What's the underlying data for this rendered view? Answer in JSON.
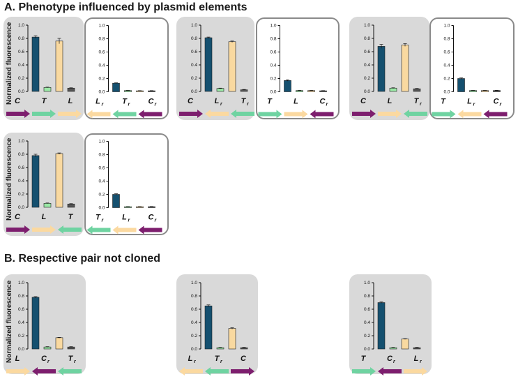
{
  "sections": {
    "a_title": "A. Phenotype influenced by plasmid elements",
    "b_title": "B. Respective pair not cloned"
  },
  "ylabel": "Normalized fluorescence",
  "colors": {
    "C": "#15506f",
    "T": "#9be8a6",
    "L": "#f9d9a0",
    "R": "#555555",
    "arrow_C": "#7d1e6e",
    "arrow_T": "#6fd3a1",
    "arrow_L": "#fbd9a0",
    "panel_filled": "#d9d9d9",
    "panel_border": "#8a8a8a"
  },
  "chart_data": [
    {
      "type": "bar",
      "panel": "A1",
      "style": "filled",
      "ylim": [
        0,
        1.0
      ],
      "ticks": [
        "0.0",
        "0.2",
        "0.4",
        "0.6",
        "0.8",
        "1.0"
      ],
      "bars": [
        {
          "color": "C",
          "value": 0.82,
          "err": 0.02
        },
        {
          "color": "T",
          "value": 0.06,
          "err": 0.005
        },
        {
          "color": "L",
          "value": 0.76,
          "err": 0.04
        },
        {
          "color": "R",
          "value": 0.05,
          "err": 0.005
        }
      ],
      "labels": [
        {
          "base": "C",
          "sub": ""
        },
        {
          "base": "T",
          "sub": ""
        },
        {
          "base": "L",
          "sub": ""
        }
      ],
      "arrows": [
        {
          "color": "C",
          "dir": "right"
        },
        {
          "color": "T",
          "dir": "right"
        },
        {
          "color": "L",
          "dir": "right"
        }
      ]
    },
    {
      "type": "bar",
      "panel": "A2",
      "style": "outlined",
      "ylim": [
        0,
        1.0
      ],
      "ticks": [
        "0.0",
        "0.2",
        "0.4",
        "0.6",
        "0.8",
        "1.0"
      ],
      "bars": [
        {
          "color": "C",
          "value": 0.13,
          "err": 0.005
        },
        {
          "color": "T",
          "value": 0.02,
          "err": 0.003
        },
        {
          "color": "L",
          "value": 0.015,
          "err": 0.003
        },
        {
          "color": "R",
          "value": 0.015,
          "err": 0.003
        }
      ],
      "labels": [
        {
          "base": "L",
          "sub": "r"
        },
        {
          "base": "T",
          "sub": "r"
        },
        {
          "base": "C",
          "sub": "r"
        }
      ],
      "arrows": [
        {
          "color": "L",
          "dir": "left"
        },
        {
          "color": "T",
          "dir": "left"
        },
        {
          "color": "C",
          "dir": "left"
        }
      ]
    },
    {
      "type": "bar",
      "panel": "A3",
      "style": "filled",
      "ylim": [
        0,
        1.0
      ],
      "ticks": [
        "0.0",
        "0.2",
        "0.4",
        "0.6",
        "0.8",
        "1.0"
      ],
      "bars": [
        {
          "color": "C",
          "value": 0.81,
          "err": 0.01
        },
        {
          "color": "T",
          "value": 0.045,
          "err": 0.005
        },
        {
          "color": "L",
          "value": 0.75,
          "err": 0.01
        },
        {
          "color": "R",
          "value": 0.025,
          "err": 0.005
        }
      ],
      "labels": [
        {
          "base": "C",
          "sub": ""
        },
        {
          "base": "L",
          "sub": "r"
        },
        {
          "base": "T",
          "sub": "r"
        }
      ],
      "arrows": [
        {
          "color": "C",
          "dir": "right"
        },
        {
          "color": "L",
          "dir": "left"
        },
        {
          "color": "T",
          "dir": "left"
        }
      ]
    },
    {
      "type": "bar",
      "panel": "A4",
      "style": "outlined",
      "ylim": [
        0,
        1.0
      ],
      "ticks": [
        "0.0",
        "0.2",
        "0.4",
        "0.6",
        "0.8",
        "1.0"
      ],
      "bars": [
        {
          "color": "C",
          "value": 0.17,
          "err": 0.01
        },
        {
          "color": "T",
          "value": 0.02,
          "err": 0.003
        },
        {
          "color": "L",
          "value": 0.02,
          "err": 0.003
        },
        {
          "color": "R",
          "value": 0.015,
          "err": 0.003
        }
      ],
      "labels": [
        {
          "base": "T",
          "sub": ""
        },
        {
          "base": "L",
          "sub": ""
        },
        {
          "base": "C",
          "sub": "r"
        }
      ],
      "arrows": [
        {
          "color": "T",
          "dir": "right"
        },
        {
          "color": "L",
          "dir": "right"
        },
        {
          "color": "C",
          "dir": "left"
        }
      ]
    },
    {
      "type": "bar",
      "panel": "A5",
      "style": "filled",
      "ylim": [
        0,
        1.0
      ],
      "ticks": [
        "0.0",
        "0.2",
        "0.4",
        "0.6",
        "0.8",
        "1.0"
      ],
      "bars": [
        {
          "color": "C",
          "value": 0.68,
          "err": 0.03
        },
        {
          "color": "T",
          "value": 0.05,
          "err": 0.005
        },
        {
          "color": "L",
          "value": 0.7,
          "err": 0.02
        },
        {
          "color": "R",
          "value": 0.04,
          "err": 0.005
        }
      ],
      "labels": [
        {
          "base": "C",
          "sub": ""
        },
        {
          "base": "L",
          "sub": ""
        },
        {
          "base": "T",
          "sub": "r"
        }
      ],
      "arrows": [
        {
          "color": "C",
          "dir": "right"
        },
        {
          "color": "L",
          "dir": "right"
        },
        {
          "color": "T",
          "dir": "left"
        }
      ]
    },
    {
      "type": "bar",
      "panel": "A6",
      "style": "outlined",
      "ylim": [
        0,
        1.0
      ],
      "ticks": [
        "0.0",
        "0.2",
        "0.4",
        "0.6",
        "0.8",
        "1.0"
      ],
      "bars": [
        {
          "color": "C",
          "value": 0.2,
          "err": 0.01
        },
        {
          "color": "T",
          "value": 0.02,
          "err": 0.003
        },
        {
          "color": "L",
          "value": 0.02,
          "err": 0.003
        },
        {
          "color": "R",
          "value": 0.02,
          "err": 0.003
        }
      ],
      "labels": [
        {
          "base": "T",
          "sub": ""
        },
        {
          "base": "L",
          "sub": "r"
        },
        {
          "base": "C",
          "sub": "r"
        }
      ],
      "arrows": [
        {
          "color": "T",
          "dir": "right"
        },
        {
          "color": "L",
          "dir": "left"
        },
        {
          "color": "C",
          "dir": "left"
        }
      ]
    },
    {
      "type": "bar",
      "panel": "A7",
      "style": "filled",
      "ylim": [
        0,
        1.0
      ],
      "ticks": [
        "0.0",
        "0.2",
        "0.4",
        "0.6",
        "0.8",
        "1.0"
      ],
      "bars": [
        {
          "color": "C",
          "value": 0.78,
          "err": 0.02
        },
        {
          "color": "T",
          "value": 0.06,
          "err": 0.005
        },
        {
          "color": "L",
          "value": 0.81,
          "err": 0.01
        },
        {
          "color": "R",
          "value": 0.05,
          "err": 0.005
        }
      ],
      "labels": [
        {
          "base": "C",
          "sub": ""
        },
        {
          "base": "L",
          "sub": ""
        },
        {
          "base": "T",
          "sub": ""
        }
      ],
      "arrows": [
        {
          "color": "C",
          "dir": "right"
        },
        {
          "color": "L",
          "dir": "right"
        },
        {
          "color": "T",
          "dir": "left"
        }
      ]
    },
    {
      "type": "bar",
      "panel": "A8",
      "style": "outlined",
      "ylim": [
        0,
        1.0
      ],
      "ticks": [
        "0.0",
        "0.2",
        "0.4",
        "0.6",
        "0.8",
        "1.0"
      ],
      "bars": [
        {
          "color": "C",
          "value": 0.2,
          "err": 0.01
        },
        {
          "color": "T",
          "value": 0.015,
          "err": 0.003
        },
        {
          "color": "L",
          "value": 0.015,
          "err": 0.003
        },
        {
          "color": "R",
          "value": 0.015,
          "err": 0.003
        }
      ],
      "labels": [
        {
          "base": "T",
          "sub": "r"
        },
        {
          "base": "L",
          "sub": "r"
        },
        {
          "base": "C",
          "sub": "r"
        }
      ],
      "arrows": [
        {
          "color": "T",
          "dir": "left"
        },
        {
          "color": "L",
          "dir": "left"
        },
        {
          "color": "C",
          "dir": "left"
        }
      ]
    },
    {
      "type": "bar",
      "panel": "B1",
      "style": "filled",
      "ylim": [
        0,
        1.0
      ],
      "ticks": [
        "0.0",
        "0.2",
        "0.4",
        "0.6",
        "0.8",
        "1.0"
      ],
      "bars": [
        {
          "color": "C",
          "value": 0.78,
          "err": 0.01
        },
        {
          "color": "T",
          "value": 0.03,
          "err": 0.005
        },
        {
          "color": "L",
          "value": 0.17,
          "err": 0.005
        },
        {
          "color": "R",
          "value": 0.03,
          "err": 0.005
        }
      ],
      "labels": [
        {
          "base": "L",
          "sub": ""
        },
        {
          "base": "C",
          "sub": "r"
        },
        {
          "base": "T",
          "sub": "r"
        }
      ],
      "arrows": [
        {
          "color": "L",
          "dir": "right"
        },
        {
          "color": "C",
          "dir": "left"
        },
        {
          "color": "T",
          "dir": "left"
        }
      ]
    },
    {
      "type": "bar",
      "panel": "B2",
      "style": "filled",
      "ylim": [
        0,
        1.0
      ],
      "ticks": [
        "0.0",
        "0.2",
        "0.4",
        "0.6",
        "0.8",
        "1.0"
      ],
      "bars": [
        {
          "color": "C",
          "value": 0.65,
          "err": 0.015
        },
        {
          "color": "T",
          "value": 0.02,
          "err": 0.005
        },
        {
          "color": "L",
          "value": 0.31,
          "err": 0.01
        },
        {
          "color": "R",
          "value": 0.02,
          "err": 0.005
        }
      ],
      "labels": [
        {
          "base": "L",
          "sub": "r"
        },
        {
          "base": "T",
          "sub": "r"
        },
        {
          "base": "C",
          "sub": ""
        }
      ],
      "arrows": [
        {
          "color": "L",
          "dir": "left"
        },
        {
          "color": "T",
          "dir": "left"
        },
        {
          "color": "C",
          "dir": "right"
        }
      ]
    },
    {
      "type": "bar",
      "panel": "B3",
      "style": "filled",
      "ylim": [
        0,
        1.0
      ],
      "ticks": [
        "0.0",
        "0.2",
        "0.4",
        "0.6",
        "0.8",
        "1.0"
      ],
      "bars": [
        {
          "color": "C",
          "value": 0.7,
          "err": 0.01
        },
        {
          "color": "T",
          "value": 0.02,
          "err": 0.005
        },
        {
          "color": "L",
          "value": 0.15,
          "err": 0.005
        },
        {
          "color": "R",
          "value": 0.02,
          "err": 0.005
        }
      ],
      "labels": [
        {
          "base": "T",
          "sub": ""
        },
        {
          "base": "C",
          "sub": "r"
        },
        {
          "base": "L",
          "sub": "r"
        }
      ],
      "arrows": [
        {
          "color": "T",
          "dir": "right"
        },
        {
          "color": "C",
          "dir": "left"
        },
        {
          "color": "L",
          "dir": "right"
        }
      ]
    }
  ]
}
